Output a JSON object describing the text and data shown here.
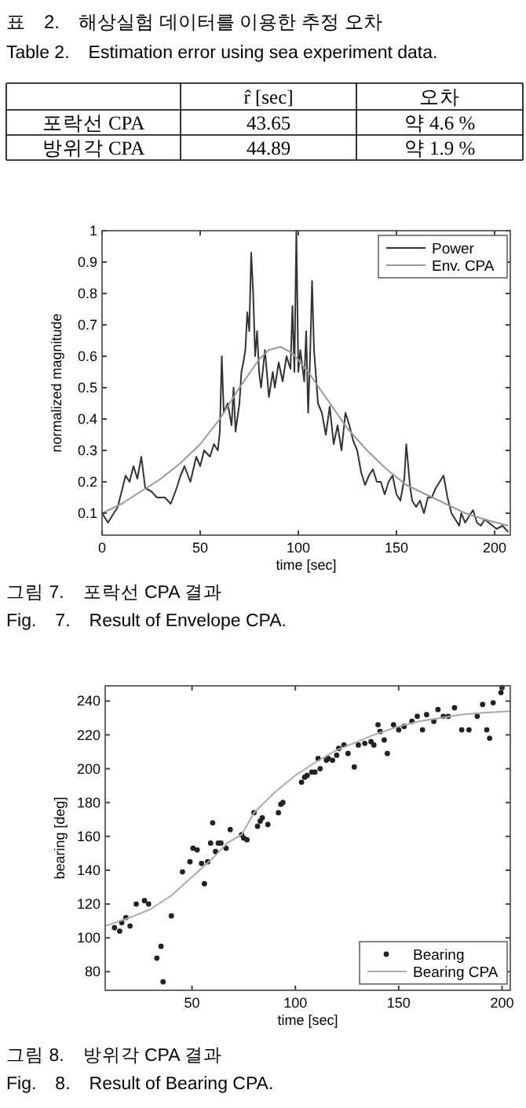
{
  "chart_data": [
    {
      "type": "other",
      "title": "표　2.　해상실험 데이터를 이용한 추정 오차",
      "subtitle": "Table 2.　Estimation error using sea experiment data.",
      "categories": [
        null,
        "r̂ [sec]",
        "오차"
      ],
      "y_categories": [
        "포락선 CPA",
        "방위각 CPA"
      ],
      "cell_labels": [
        [
          "43.65",
          "약 4.6 %"
        ],
        [
          "44.89",
          "약 1.9 %"
        ]
      ]
    },
    {
      "type": "line",
      "xlabel": "time [sec]",
      "ylabel": "normalized magnitude",
      "xlim": [
        0,
        208
      ],
      "ylim": [
        0.03,
        1
      ],
      "xticks": [
        0,
        50,
        100,
        150,
        200
      ],
      "yticks": [
        0.1,
        0.2,
        0.3,
        0.4,
        0.5,
        0.6,
        0.7,
        0.8,
        0.9,
        1
      ],
      "legend": "top right",
      "grid": false,
      "annotations": [
        "그림 7.　포락선 CPA 결과",
        "Fig.　7.　Result of Envelope CPA."
      ],
      "series": [
        {
          "name": "Power",
          "color": "#333333",
          "x": [
            0,
            3,
            8,
            12,
            14,
            16,
            18,
            20,
            22,
            25,
            28,
            32,
            35,
            38,
            40,
            42,
            45,
            48,
            50,
            52,
            55,
            57,
            59,
            60,
            61,
            62,
            64,
            66,
            67,
            68,
            70,
            71,
            72,
            73,
            74,
            75,
            76,
            77,
            78,
            79,
            80,
            81,
            83,
            85,
            87,
            88,
            90,
            92,
            94,
            96,
            97,
            98,
            99,
            100,
            101,
            103,
            104,
            105,
            106,
            107,
            108,
            110,
            112,
            114,
            116,
            118,
            120,
            122,
            124,
            126,
            128,
            130,
            132,
            134,
            136,
            138,
            140,
            142,
            144,
            146,
            148,
            150,
            152,
            154,
            155,
            157,
            158,
            160,
            162,
            164,
            166,
            168,
            170,
            172,
            174,
            176,
            178,
            180,
            182,
            183,
            185,
            187,
            189,
            191,
            193,
            195,
            197,
            199,
            201,
            204,
            207
          ],
          "values": [
            0.1,
            0.07,
            0.12,
            0.22,
            0.2,
            0.25,
            0.21,
            0.28,
            0.18,
            0.17,
            0.15,
            0.15,
            0.13,
            0.18,
            0.22,
            0.25,
            0.2,
            0.28,
            0.25,
            0.3,
            0.28,
            0.32,
            0.3,
            0.36,
            0.6,
            0.42,
            0.45,
            0.38,
            0.5,
            0.36,
            0.45,
            0.55,
            0.58,
            0.62,
            0.74,
            0.68,
            0.93,
            0.8,
            0.6,
            0.68,
            0.55,
            0.5,
            0.62,
            0.47,
            0.55,
            0.5,
            0.58,
            0.52,
            0.6,
            0.56,
            0.76,
            0.55,
            1.0,
            0.55,
            0.62,
            0.52,
            0.68,
            0.42,
            0.6,
            0.84,
            0.62,
            0.45,
            0.42,
            0.35,
            0.44,
            0.32,
            0.38,
            0.3,
            0.42,
            0.38,
            0.33,
            0.3,
            0.23,
            0.19,
            0.22,
            0.24,
            0.2,
            0.2,
            0.16,
            0.2,
            0.22,
            0.16,
            0.14,
            0.21,
            0.32,
            0.18,
            0.14,
            0.12,
            0.14,
            0.1,
            0.15,
            0.15,
            0.18,
            0.2,
            0.22,
            0.15,
            0.1,
            0.08,
            0.06,
            0.1,
            0.07,
            0.09,
            0.11,
            0.07,
            0.06,
            0.08,
            0.07,
            0.06,
            0.05,
            0.06,
            0.04
          ]
        },
        {
          "name": "Env. CPA",
          "color": "#999999",
          "x": [
            0,
            10,
            20,
            30,
            40,
            50,
            60,
            70,
            80,
            85,
            91,
            97,
            105,
            115,
            125,
            135,
            145,
            155,
            165,
            175,
            185,
            195,
            207
          ],
          "values": [
            0.1,
            0.13,
            0.17,
            0.21,
            0.26,
            0.32,
            0.4,
            0.5,
            0.59,
            0.62,
            0.63,
            0.61,
            0.55,
            0.46,
            0.37,
            0.3,
            0.24,
            0.19,
            0.16,
            0.13,
            0.1,
            0.08,
            0.06
          ]
        }
      ]
    },
    {
      "type": "scatter",
      "xlabel": "time [sec]",
      "ylabel": "bearing [deg]",
      "xlim": [
        8,
        204
      ],
      "ylim": [
        69,
        249
      ],
      "xticks": [
        50,
        100,
        150,
        200
      ],
      "yticks": [
        80,
        100,
        120,
        140,
        160,
        180,
        200,
        220,
        240
      ],
      "legend": "bottom right",
      "grid": false,
      "annotations": [
        "그림 8.　방위각 CPA 결과",
        "Fig.　8.　Result of Bearing CPA."
      ],
      "series": [
        {
          "name": "Bearing",
          "type": "scatter",
          "marker": "circle",
          "color": "#222222",
          "x": [
            12.5,
            15,
            16,
            18,
            20,
            23,
            27,
            29,
            33,
            35,
            36,
            40,
            45.4,
            49,
            50.5,
            52.5,
            54.6,
            56,
            57.6,
            59,
            60,
            61.4,
            62.7,
            64,
            66.5,
            68.5,
            74,
            75,
            76.6,
            80,
            81.7,
            83,
            84,
            86.7,
            91.8,
            93,
            94,
            103,
            104.5,
            105.7,
            108,
            109.5,
            111,
            112,
            115,
            116,
            118,
            120,
            121,
            123.5,
            125.5,
            128.5,
            130.5,
            133.6,
            136.6,
            138,
            140,
            141,
            143,
            144.5,
            147.5,
            150,
            152.6,
            156.4,
            159,
            161.5,
            163.5,
            167,
            169,
            171.6,
            174,
            177,
            180.5,
            184,
            188,
            190.6,
            192.6,
            194,
            195.7,
            199.5,
            200
          ],
          "values": [
            106,
            104,
            109,
            112,
            107,
            120,
            122,
            120,
            88,
            95,
            74,
            113,
            139,
            145,
            153,
            152,
            144,
            132,
            145,
            156,
            168,
            151,
            156,
            156,
            153,
            164,
            161,
            159,
            158,
            174,
            166,
            169,
            171,
            167,
            174,
            179,
            180,
            192,
            195,
            196,
            198,
            198,
            206,
            200,
            205,
            206,
            205,
            208,
            212,
            214,
            209,
            201,
            214,
            215,
            216,
            214,
            226,
            222,
            217,
            209,
            226,
            223,
            225,
            228,
            231,
            223,
            232,
            228,
            235,
            231,
            231,
            236,
            223,
            223,
            231,
            238,
            223,
            218,
            239,
            245,
            248
          ]
        },
        {
          "name": "Bearing CPA",
          "type": "line",
          "color": "#aaaaaa",
          "x": [
            8,
            20,
            30,
            40,
            50,
            60,
            67,
            74,
            80,
            90,
            100,
            110,
            120,
            130,
            140,
            150,
            160,
            170,
            180,
            190,
            204
          ],
          "values": [
            107,
            112,
            117,
            125,
            136,
            147,
            156,
            161,
            174,
            186,
            196,
            204,
            211,
            216,
            221,
            225,
            228,
            230,
            232,
            233,
            234
          ]
        }
      ]
    }
  ]
}
